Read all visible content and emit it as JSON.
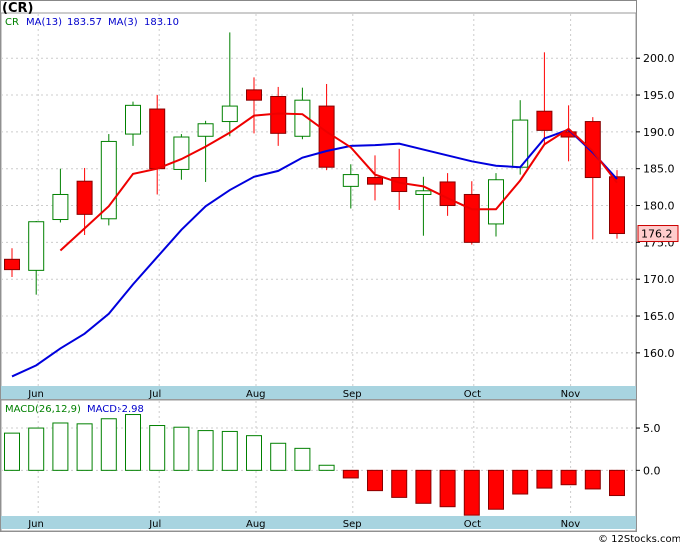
{
  "title": "(CR)",
  "credit": "© 12Stocks.com",
  "price_panel": {
    "legend": [
      {
        "label": "CR",
        "color": "#008000"
      },
      {
        "label": "MA(13)",
        "value": "183.57",
        "color": "#0000cc"
      },
      {
        "label": "MA(3)",
        "value": "183.10",
        "color": "#0000cc"
      }
    ],
    "last_price_label": "176.2",
    "y_ticks": [
      "160.0",
      "165.0",
      "170.0",
      "175.0",
      "180.0",
      "185.0",
      "190.0",
      "195.0",
      "200.0"
    ],
    "ylim": [
      155.5,
      206
    ]
  },
  "macd_panel": {
    "legend": [
      {
        "label": "MACD(26,12,9)",
        "color": "#008000"
      },
      {
        "label": "MACD:",
        "value": "-2.98",
        "color": "#0000cc"
      }
    ],
    "y_ticks": [
      "5.0",
      "0.0"
    ],
    "ylim": [
      -5.4,
      8.2
    ]
  },
  "x_ticks": [
    {
      "label": "Jun",
      "index": 1
    },
    {
      "label": "Jul",
      "index": 6
    },
    {
      "label": "Aug",
      "index": 10
    },
    {
      "label": "Sep",
      "index": 14
    },
    {
      "label": "Oct",
      "index": 19
    },
    {
      "label": "Nov",
      "index": 23
    }
  ],
  "colors": {
    "up": "#008000",
    "down": "#ff0000",
    "ma13": "#0000dd",
    "ma3": "#ee0000",
    "axis_band": "#a8d4e0",
    "grid": "#cccccc",
    "price_tag_bg": "#ffcccc"
  },
  "chart_data": {
    "type": "candlestick",
    "period": "weekly",
    "candles": [
      {
        "o": 172.7,
        "h": 174.2,
        "l": 170.3,
        "c": 171.3
      },
      {
        "o": 171.2,
        "h": 177.9,
        "l": 167.9,
        "c": 177.8
      },
      {
        "o": 178.1,
        "h": 185.0,
        "l": 177.7,
        "c": 181.5
      },
      {
        "o": 183.3,
        "h": 185.1,
        "l": 176.0,
        "c": 178.8
      },
      {
        "o": 178.2,
        "h": 189.7,
        "l": 177.3,
        "c": 188.7
      },
      {
        "o": 189.7,
        "h": 194.1,
        "l": 188.1,
        "c": 193.6
      },
      {
        "o": 193.1,
        "h": 195.0,
        "l": 181.5,
        "c": 185.0
      },
      {
        "o": 184.9,
        "h": 189.7,
        "l": 183.5,
        "c": 189.3
      },
      {
        "o": 189.4,
        "h": 191.5,
        "l": 183.2,
        "c": 191.1
      },
      {
        "o": 191.4,
        "h": 203.5,
        "l": 189.4,
        "c": 193.5
      },
      {
        "o": 195.7,
        "h": 197.4,
        "l": 189.8,
        "c": 194.3
      },
      {
        "o": 194.8,
        "h": 196.1,
        "l": 188.1,
        "c": 189.8
      },
      {
        "o": 189.4,
        "h": 196.0,
        "l": 189.0,
        "c": 194.3
      },
      {
        "o": 193.5,
        "h": 196.5,
        "l": 184.8,
        "c": 185.2
      },
      {
        "o": 182.6,
        "h": 185.6,
        "l": 179.6,
        "c": 184.2
      },
      {
        "o": 183.8,
        "h": 186.8,
        "l": 180.7,
        "c": 182.9
      },
      {
        "o": 183.8,
        "h": 187.7,
        "l": 179.4,
        "c": 181.9
      },
      {
        "o": 181.5,
        "h": 183.9,
        "l": 175.9,
        "c": 182.0
      },
      {
        "o": 183.2,
        "h": 184.4,
        "l": 178.6,
        "c": 180.0
      },
      {
        "o": 181.5,
        "h": 183.3,
        "l": 174.7,
        "c": 175.0
      },
      {
        "o": 177.5,
        "h": 184.4,
        "l": 175.8,
        "c": 183.5
      },
      {
        "o": 185.2,
        "h": 194.3,
        "l": 184.2,
        "c": 191.6
      },
      {
        "o": 192.8,
        "h": 200.8,
        "l": 188.3,
        "c": 190.2
      },
      {
        "o": 190.0,
        "h": 193.6,
        "l": 186.0,
        "c": 189.3
      },
      {
        "o": 191.4,
        "h": 192.0,
        "l": 175.4,
        "c": 183.8
      },
      {
        "o": 183.9,
        "h": 184.8,
        "l": 175.5,
        "c": 176.2
      }
    ],
    "ma13": [
      156.8,
      158.3,
      160.6,
      162.6,
      165.3,
      169.3,
      173.0,
      176.7,
      179.9,
      182.1,
      183.9,
      184.7,
      186.5,
      187.4,
      188.1,
      188.2,
      188.4,
      187.6,
      186.8,
      186.0,
      185.4,
      185.2,
      189.1,
      190.3,
      187.2,
      183.6
    ],
    "ma3": [
      null,
      null,
      173.9,
      176.9,
      179.9,
      184.3,
      185.0,
      186.3,
      188.0,
      189.9,
      192.2,
      192.5,
      192.4,
      190.0,
      187.9,
      184.2,
      183.1,
      182.6,
      181.0,
      179.5,
      179.5,
      183.4,
      188.3,
      190.4,
      187.4,
      183.1
    ],
    "macd": [
      4.4,
      5.0,
      5.6,
      5.5,
      6.1,
      6.6,
      5.3,
      5.1,
      4.7,
      4.6,
      4.1,
      3.2,
      2.6,
      0.6,
      -0.9,
      -2.4,
      -3.2,
      -3.9,
      -4.3,
      -5.3,
      -4.6,
      -2.8,
      -2.1,
      -1.7,
      -2.2,
      -2.98
    ]
  }
}
